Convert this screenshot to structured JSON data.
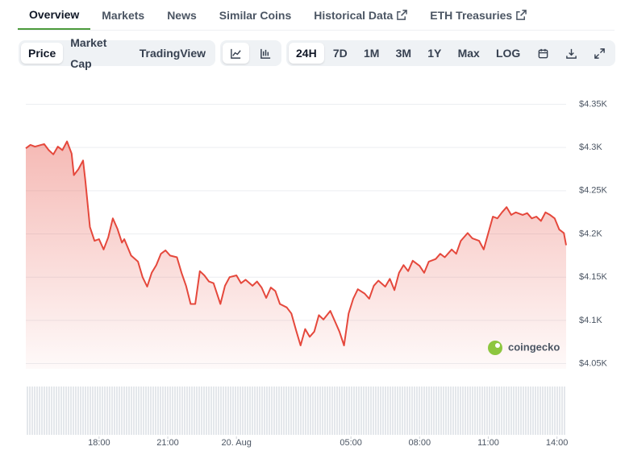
{
  "tabs": [
    "Overview",
    "Markets",
    "News",
    "Similar Coins",
    "Historical Data",
    "ETH Treasuries"
  ],
  "chart_views": [
    "Price",
    "Market Cap",
    "TradingView"
  ],
  "ranges": [
    "24H",
    "7D",
    "1M",
    "3M",
    "1Y",
    "Max",
    "LOG"
  ],
  "watermark": "coingecko",
  "chart_data": {
    "type": "area",
    "color": "#e5483c",
    "grid": true,
    "y_axis_side": "right",
    "xlim": [
      14.8,
      38.4
    ],
    "ylim": [
      4044,
      4370
    ],
    "xticks": [
      {
        "value": 18,
        "label": "18:00"
      },
      {
        "value": 21,
        "label": "21:00"
      },
      {
        "value": 24,
        "label": "20. Aug"
      },
      {
        "value": 29,
        "label": "05:00"
      },
      {
        "value": 32,
        "label": "08:00"
      },
      {
        "value": 35,
        "label": "11:00"
      },
      {
        "value": 38,
        "label": "14:00"
      }
    ],
    "yticks": [
      {
        "value": 4050,
        "label": "$4.05K"
      },
      {
        "value": 4100,
        "label": "$4.1K"
      },
      {
        "value": 4150,
        "label": "$4.15K"
      },
      {
        "value": 4200,
        "label": "$4.2K"
      },
      {
        "value": 4250,
        "label": "$4.25K"
      },
      {
        "value": 4300,
        "label": "$4.3K"
      },
      {
        "value": 4350,
        "label": "$4.35K"
      }
    ],
    "x": [
      14.8,
      15.0,
      15.2,
      15.6,
      15.8,
      16.0,
      16.2,
      16.4,
      16.6,
      16.8,
      16.9,
      17.1,
      17.3,
      17.4,
      17.6,
      17.8,
      18.0,
      18.2,
      18.4,
      18.6,
      18.8,
      19.0,
      19.1,
      19.4,
      19.7,
      19.9,
      20.1,
      20.3,
      20.5,
      20.7,
      20.9,
      21.1,
      21.4,
      21.6,
      21.8,
      22.0,
      22.2,
      22.4,
      22.6,
      22.8,
      23.0,
      23.3,
      23.5,
      23.7,
      24.0,
      24.2,
      24.4,
      24.7,
      24.9,
      25.1,
      25.3,
      25.5,
      25.7,
      25.9,
      26.2,
      26.4,
      26.6,
      26.8,
      27.0,
      27.2,
      27.4,
      27.6,
      27.8,
      28.1,
      28.3,
      28.5,
      28.7,
      28.9,
      29.1,
      29.3,
      29.6,
      29.8,
      30.0,
      30.2,
      30.5,
      30.7,
      30.9,
      31.1,
      31.3,
      31.5,
      31.7,
      32.0,
      32.2,
      32.4,
      32.7,
      32.9,
      33.1,
      33.4,
      33.6,
      33.8,
      34.1,
      34.3,
      34.6,
      34.8,
      35.0,
      35.2,
      35.4,
      35.6,
      35.8,
      36.0,
      36.2,
      36.5,
      36.7,
      36.9,
      37.1,
      37.3,
      37.5,
      37.7,
      37.9,
      38.1,
      38.3,
      38.4
    ],
    "values": [
      4299,
      4303,
      4301,
      4304,
      4297,
      4292,
      4301,
      4297,
      4307,
      4293,
      4268,
      4275,
      4285,
      4262,
      4208,
      4192,
      4194,
      4182,
      4196,
      4218,
      4206,
      4190,
      4194,
      4175,
      4168,
      4150,
      4139,
      4155,
      4164,
      4177,
      4181,
      4175,
      4173,
      4155,
      4140,
      4119,
      4119,
      4157,
      4152,
      4145,
      4143,
      4119,
      4140,
      4150,
      4152,
      4143,
      4147,
      4140,
      4145,
      4138,
      4126,
      4138,
      4134,
      4119,
      4115,
      4108,
      4089,
      4071,
      4090,
      4081,
      4087,
      4106,
      4101,
      4111,
      4099,
      4087,
      4071,
      4108,
      4125,
      4136,
      4131,
      4125,
      4140,
      4146,
      4139,
      4148,
      4135,
      4155,
      4164,
      4157,
      4169,
      4163,
      4155,
      4168,
      4171,
      4177,
      4173,
      4182,
      4177,
      4192,
      4201,
      4195,
      4192,
      4182,
      4201,
      4220,
      4218,
      4225,
      4231,
      4222,
      4225,
      4222,
      4224,
      4218,
      4220,
      4215,
      4225,
      4222,
      4218,
      4205,
      4201,
      4187
    ]
  }
}
